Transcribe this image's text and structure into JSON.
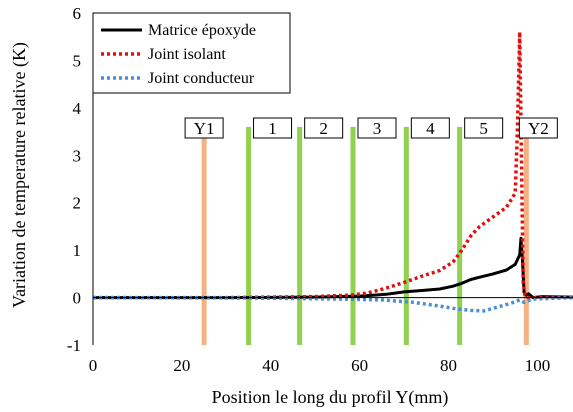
{
  "chart_data": {
    "type": "line",
    "xlabel": "Position le long du profil Y(mm)",
    "ylabel": "Variation de temperature relative (K)",
    "xlim": [
      0,
      108
    ],
    "ylim": [
      -1,
      6
    ],
    "xticks": [
      0,
      20,
      40,
      60,
      80,
      100
    ],
    "yticks": [
      -1,
      0,
      1,
      2,
      3,
      4,
      5,
      6
    ],
    "legend_position": "top-left",
    "series": [
      {
        "name": "Matrice époxyde",
        "color": "#000000",
        "style": "solid",
        "points": [
          [
            0,
            0
          ],
          [
            30,
            0
          ],
          [
            50,
            0.01
          ],
          [
            60,
            0.03
          ],
          [
            66,
            0.07
          ],
          [
            70,
            0.12
          ],
          [
            74,
            0.15
          ],
          [
            78,
            0.18
          ],
          [
            81,
            0.24
          ],
          [
            83,
            0.3
          ],
          [
            85,
            0.38
          ],
          [
            87,
            0.43
          ],
          [
            90,
            0.5
          ],
          [
            93,
            0.58
          ],
          [
            95,
            0.7
          ],
          [
            96,
            0.9
          ],
          [
            96.3,
            1.25
          ],
          [
            96.6,
            0.85
          ],
          [
            97,
            0.1
          ],
          [
            97.5,
            0.05
          ],
          [
            98,
            0.08
          ],
          [
            99,
            0
          ],
          [
            101,
            0.02
          ],
          [
            108,
            0.01
          ]
        ]
      },
      {
        "name": "Joint isolant",
        "color": "#e01010",
        "style": "dotted",
        "points": [
          [
            0,
            0
          ],
          [
            30,
            0
          ],
          [
            50,
            0.02
          ],
          [
            58,
            0.05
          ],
          [
            62,
            0.1
          ],
          [
            66,
            0.2
          ],
          [
            70,
            0.32
          ],
          [
            74,
            0.45
          ],
          [
            78,
            0.57
          ],
          [
            81,
            0.75
          ],
          [
            83,
            1.0
          ],
          [
            85,
            1.3
          ],
          [
            87,
            1.5
          ],
          [
            90,
            1.7
          ],
          [
            93,
            1.9
          ],
          [
            95,
            2.2
          ],
          [
            95.5,
            3.5
          ],
          [
            96,
            5.6
          ],
          [
            96.4,
            3.0
          ],
          [
            96.8,
            0.3
          ],
          [
            97.2,
            0.05
          ],
          [
            98,
            0
          ],
          [
            108,
            0
          ]
        ]
      },
      {
        "name": "Joint conducteur",
        "color": "#4a8fd6",
        "style": "dotted",
        "points": [
          [
            0,
            0
          ],
          [
            35,
            -0.01
          ],
          [
            55,
            -0.03
          ],
          [
            65,
            -0.05
          ],
          [
            72,
            -0.1
          ],
          [
            78,
            -0.18
          ],
          [
            82,
            -0.24
          ],
          [
            85,
            -0.27
          ],
          [
            88,
            -0.28
          ],
          [
            91,
            -0.2
          ],
          [
            94,
            -0.12
          ],
          [
            96,
            -0.05
          ],
          [
            97,
            -0.1
          ],
          [
            99,
            -0.03
          ],
          [
            108,
            0
          ]
        ]
      }
    ],
    "markers": [
      {
        "label": "Y1",
        "x": 25,
        "color": "#f4b183"
      },
      {
        "label": "1",
        "x": 35,
        "color": "#92d050"
      },
      {
        "label": "2",
        "x": 46.5,
        "color": "#92d050"
      },
      {
        "label": "3",
        "x": 58.5,
        "color": "#92d050"
      },
      {
        "label": "4",
        "x": 70.5,
        "color": "#92d050"
      },
      {
        "label": "5",
        "x": 82.5,
        "color": "#92d050"
      },
      {
        "label": "Y2",
        "x": 97.5,
        "color": "#f4b183"
      }
    ],
    "marker_top": 3.6
  }
}
